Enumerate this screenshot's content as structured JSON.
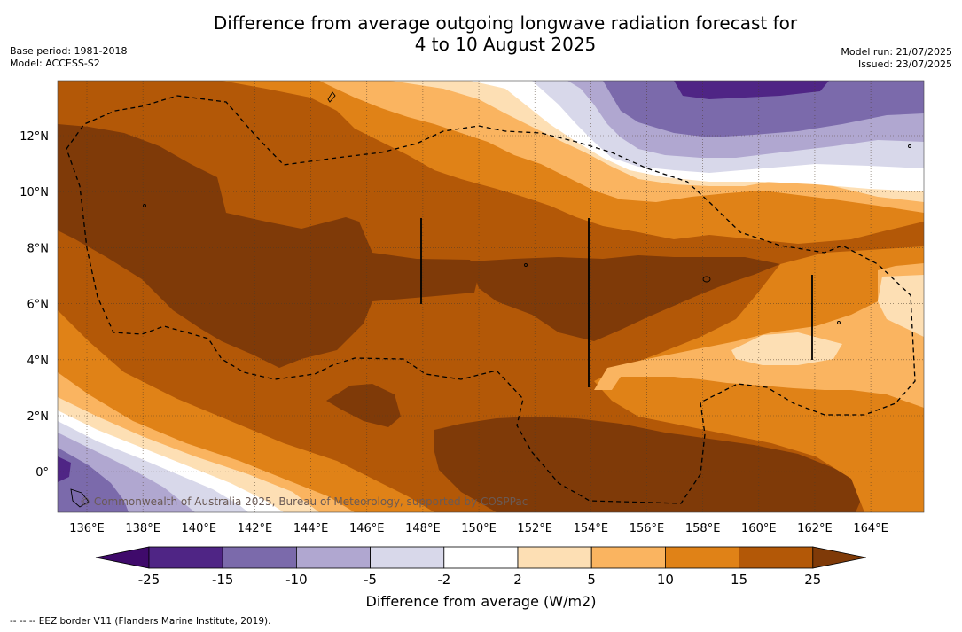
{
  "header": {
    "title_line1": "Difference from average outgoing longwave radiation forecast for",
    "title_line2": "4 to 10 August 2025",
    "base_period": "Base period: 1981-2018",
    "model": "Model: ACCESS-S2",
    "model_run": "Model run: 21/07/2025",
    "issued": "Issued: 23/07/2025"
  },
  "map": {
    "x_ticks": [
      "136°E",
      "138°E",
      "140°E",
      "142°E",
      "144°E",
      "146°E",
      "148°E",
      "150°E",
      "152°E",
      "154°E",
      "156°E",
      "158°E",
      "160°E",
      "162°E",
      "164°E"
    ],
    "y_ticks": [
      "12°N",
      "10°N",
      "8°N",
      "6°N",
      "4°N",
      "2°N",
      "0°"
    ],
    "copyright": "© Commonwealth of Australia 2025, Bureau of Meteorology, supported by COSPPac"
  },
  "colorbar": {
    "labels": [
      "-25",
      "-15",
      "-10",
      "-5",
      "-2",
      "2",
      "5",
      "10",
      "15",
      "25"
    ],
    "colors": [
      "#3f0a6b",
      "#4f2585",
      "#7b6aab",
      "#b0a7d0",
      "#d8d8ea",
      "#ffffff",
      "#fddfb4",
      "#fab460",
      "#e08217",
      "#b35807",
      "#7f3a08"
    ],
    "axis_label": "Difference from average (W/m2)"
  },
  "footer": "--  --  -- EEZ border V11 (Flanders Marine Institute, 2019)."
}
